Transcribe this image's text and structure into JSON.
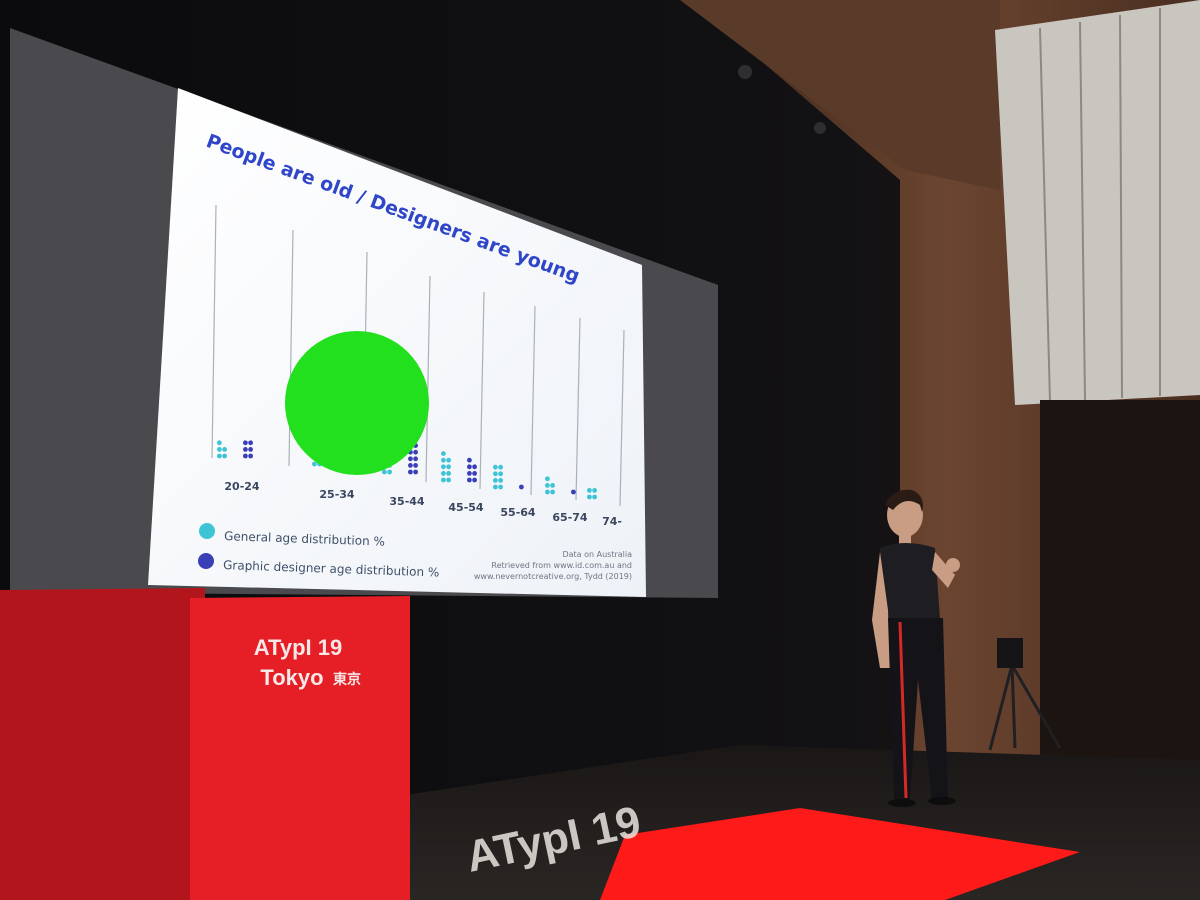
{
  "slide": {
    "title": "People are old / Designers are young",
    "age_groups": [
      "20-24",
      "25-34",
      "35-44",
      "45-54",
      "55-64",
      "65-74",
      "74-"
    ],
    "legend": {
      "general": "General age distribution %",
      "designer": "Graphic designer age distribution %"
    },
    "source_lines": [
      "Data on Australia",
      "Retrieved from www.id.com.au and",
      "www.nevernotcreative.org, Tydd (2019)"
    ],
    "colors": {
      "general": "#3ec4d6",
      "designer": "#3a3fb8",
      "title": "#3046c9",
      "overlay_circle": "#22e01e"
    }
  },
  "chart_data": {
    "type": "bar",
    "categories": [
      "20-24",
      "25-34",
      "35-44",
      "45-54",
      "55-64",
      "65-74",
      "74-"
    ],
    "series": [
      {
        "name": "General age distribution %",
        "values": [
          5,
          6,
          6,
          9,
          8,
          5,
          4
        ]
      },
      {
        "name": "Graphic designer age distribution %",
        "values": [
          6,
          24,
          14,
          7,
          1,
          1,
          0
        ]
      }
    ],
    "title": "People are old / Designers are young",
    "legend_position": "bottom-left"
  },
  "stage": {
    "podium_logo_line1": "ATypI 19",
    "podium_logo_line2": "Tokyo",
    "podium_logo_kanji": "東京",
    "floor_text": "ATypI 19"
  }
}
